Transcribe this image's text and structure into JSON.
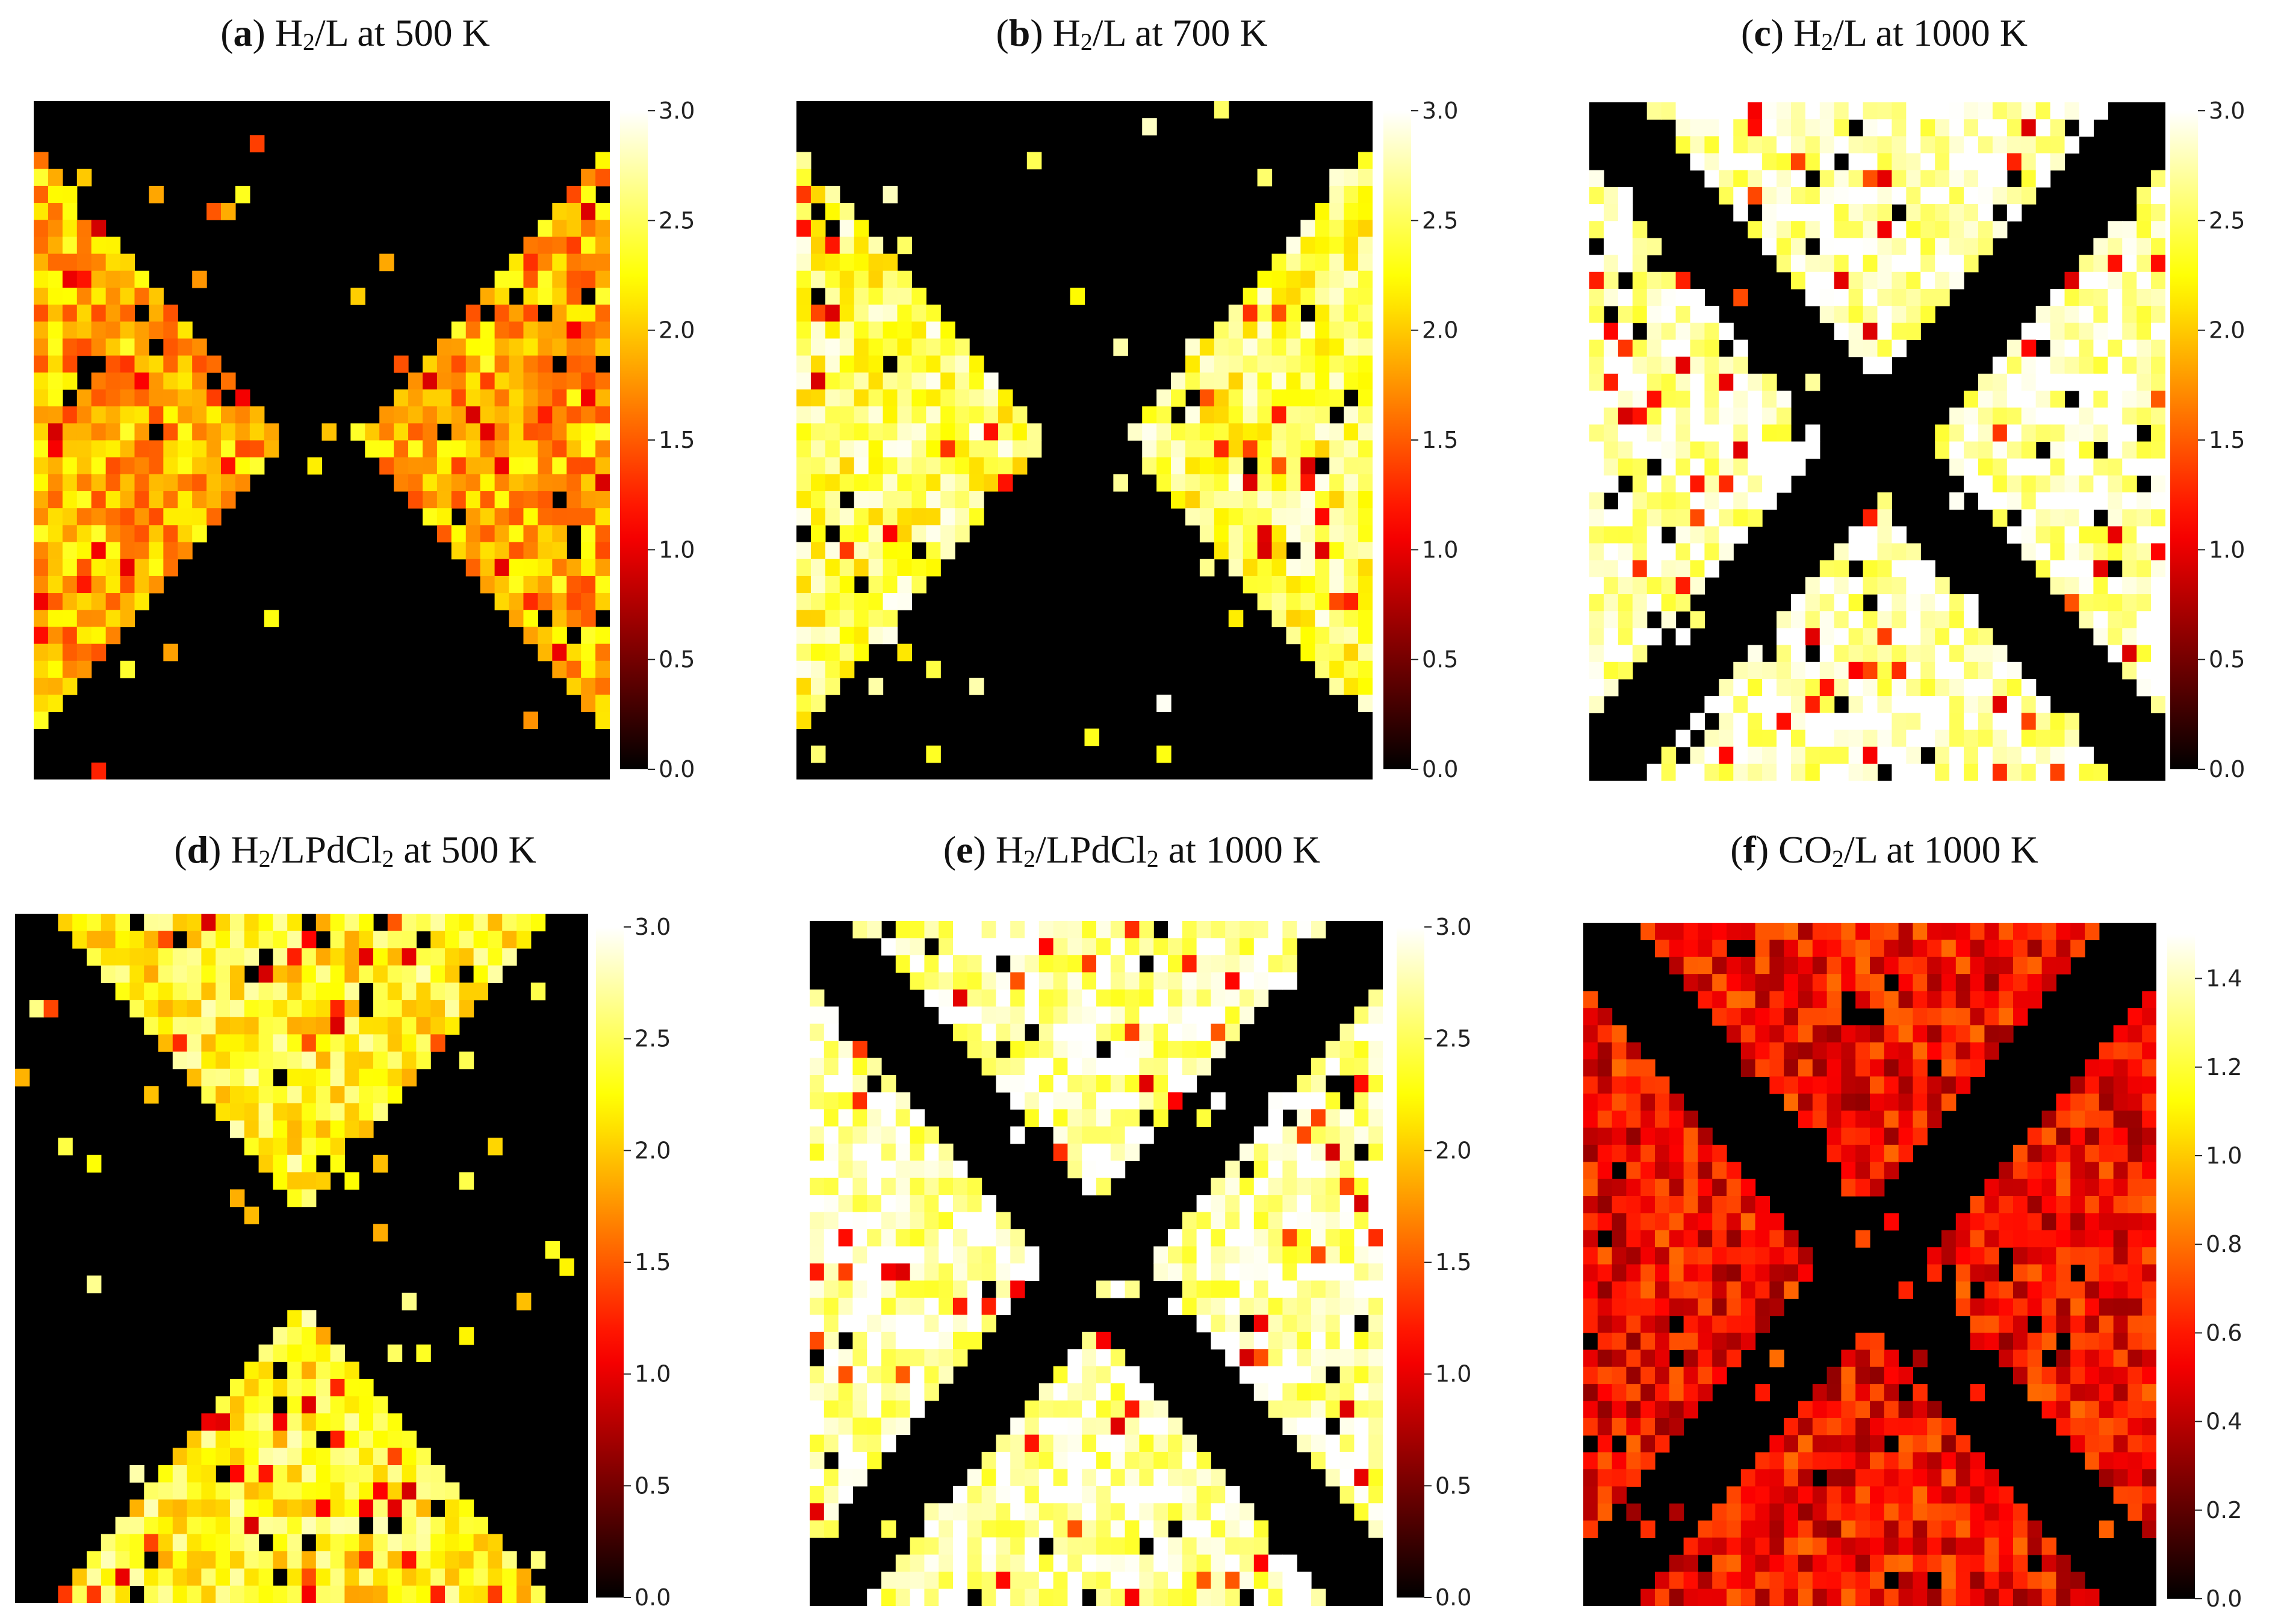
{
  "chart_data": [
    {
      "type": "heatmap",
      "panel_letter": "a",
      "title_species": "H",
      "title_sub": "2",
      "title_rest": "/L at 500 K",
      "pattern": "lr",
      "colormap": "hot",
      "vmin": 0,
      "vmax": 3.0,
      "colorbar_ticks": [
        "0.0",
        "0.5",
        "1.0",
        "1.5",
        "2.0",
        "2.5",
        "3.0"
      ],
      "typical_value": 1.9
    },
    {
      "type": "heatmap",
      "panel_letter": "b",
      "title_species": "H",
      "title_sub": "2",
      "title_rest": "/L at 700 K",
      "pattern": "lr",
      "colormap": "hot",
      "vmin": 0,
      "vmax": 3.0,
      "colorbar_ticks": [
        "0.0",
        "0.5",
        "1.0",
        "1.5",
        "2.0",
        "2.5",
        "3.0"
      ],
      "typical_value": 2.5
    },
    {
      "type": "heatmap",
      "panel_letter": "c",
      "title_species": "H",
      "title_sub": "2",
      "title_rest": "/L at 1000 K",
      "pattern": "x",
      "colormap": "hot",
      "vmin": 0,
      "vmax": 3.0,
      "colorbar_ticks": [
        "0.0",
        "0.5",
        "1.0",
        "1.5",
        "2.0",
        "2.5",
        "3.0"
      ],
      "typical_value": 2.85
    },
    {
      "type": "heatmap",
      "panel_letter": "d",
      "title_species": "H",
      "title_sub": "2",
      "title_rest": "/LPdCl",
      "title_sub2": "2",
      "title_rest2": " at 500 K",
      "pattern": "tb",
      "colormap": "hot",
      "vmin": 0,
      "vmax": 3.0,
      "colorbar_ticks": [
        "0.0",
        "0.5",
        "1.0",
        "1.5",
        "2.0",
        "2.5",
        "3.0"
      ],
      "typical_value": 2.3
    },
    {
      "type": "heatmap",
      "panel_letter": "e",
      "title_species": "H",
      "title_sub": "2",
      "title_rest": "/LPdCl",
      "title_sub2": "2",
      "title_rest2": " at 1000 K",
      "pattern": "x",
      "colormap": "hot",
      "vmin": 0,
      "vmax": 3.0,
      "colorbar_ticks": [
        "0.0",
        "0.5",
        "1.0",
        "1.5",
        "2.0",
        "2.5",
        "3.0"
      ],
      "typical_value": 2.8
    },
    {
      "type": "heatmap",
      "panel_letter": "f",
      "title_species": "CO",
      "title_sub": "2",
      "title_rest": "/L at 1000 K",
      "pattern": "x",
      "colormap": "hot",
      "vmin": 0,
      "vmax": 1.5,
      "colorbar_ticks": [
        "0.0",
        "0.2",
        "0.4",
        "0.6",
        "0.8",
        "1.0",
        "1.2",
        "1.4"
      ],
      "typical_value": 0.55
    }
  ]
}
